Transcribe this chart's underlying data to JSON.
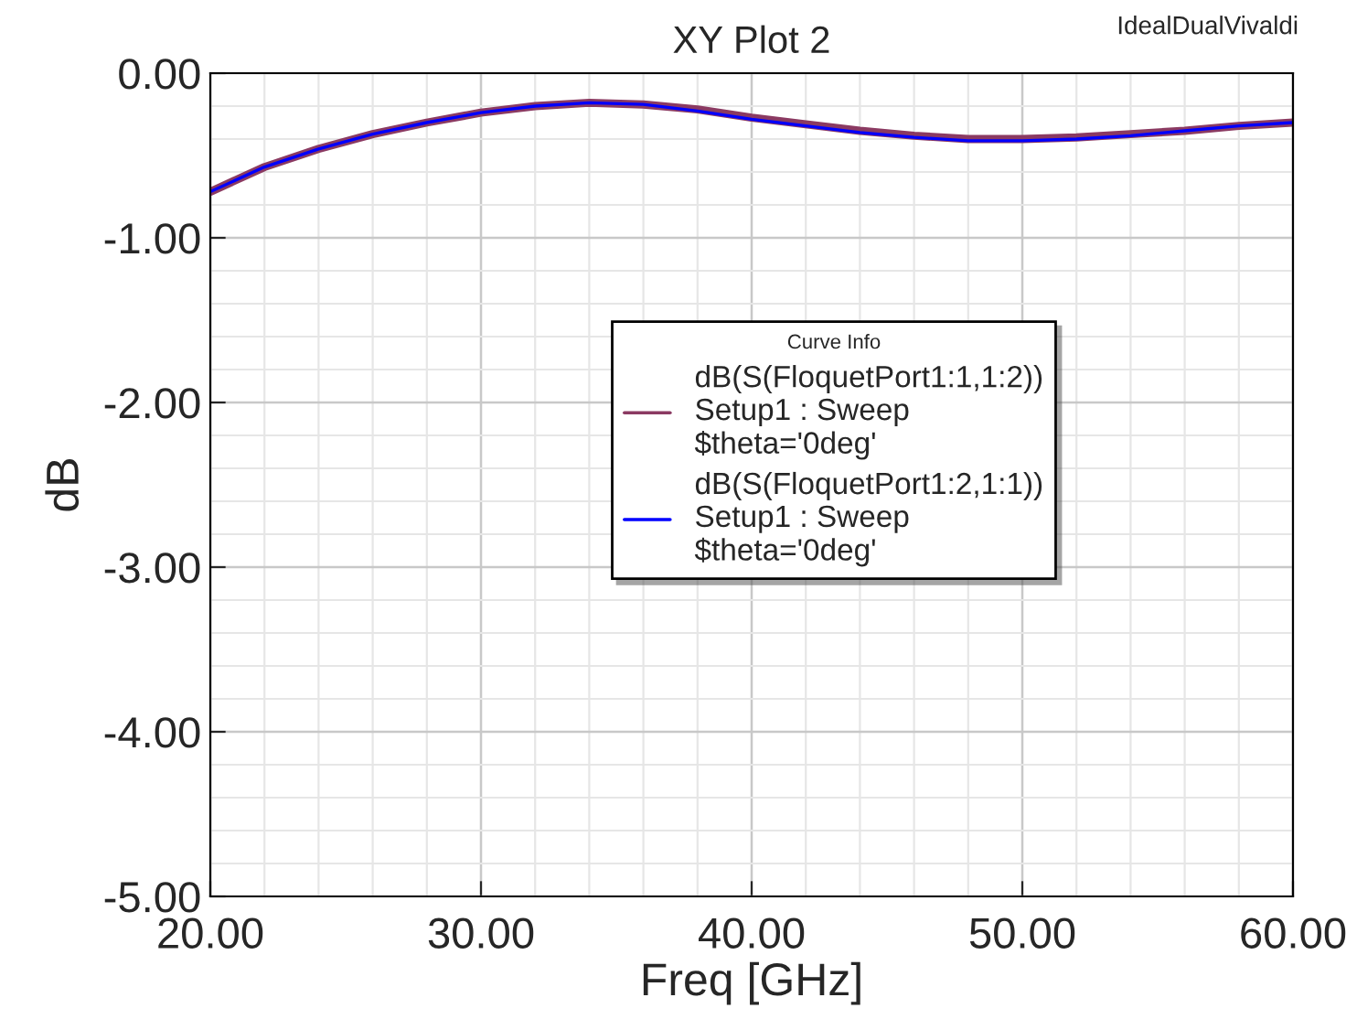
{
  "chart_data": {
    "type": "line",
    "title": "XY Plot 2",
    "xlabel": "Freq [GHz]",
    "ylabel": "dB",
    "annotations": [
      "IdealDualVivaldi"
    ],
    "legend_title": "Curve Info",
    "x": [
      20,
      22,
      24,
      26,
      28,
      30,
      32,
      34,
      36,
      38,
      40,
      42,
      44,
      46,
      48,
      50,
      52,
      54,
      56,
      58,
      60
    ],
    "series": [
      {
        "name": "dB(S(FloquetPort1:1,1:2))\nSetup1 : Sweep\n$theta='0deg'",
        "color": "#8b3a62",
        "values": [
          -0.72,
          -0.57,
          -0.46,
          -0.37,
          -0.3,
          -0.24,
          -0.2,
          -0.18,
          -0.19,
          -0.22,
          -0.27,
          -0.31,
          -0.35,
          -0.38,
          -0.4,
          -0.4,
          -0.39,
          -0.37,
          -0.35,
          -0.32,
          -0.3
        ]
      },
      {
        "name": "dB(S(FloquetPort1:2,1:1))\nSetup1 : Sweep\n$theta='0deg'",
        "color": "#0000ff",
        "values": [
          -0.72,
          -0.57,
          -0.46,
          -0.37,
          -0.3,
          -0.24,
          -0.2,
          -0.18,
          -0.19,
          -0.23,
          -0.28,
          -0.32,
          -0.36,
          -0.39,
          -0.41,
          -0.41,
          -0.4,
          -0.38,
          -0.35,
          -0.32,
          -0.3
        ]
      }
    ],
    "xlim": [
      20,
      60
    ],
    "ylim": [
      -5,
      0
    ],
    "xticks": [
      {
        "value": 20,
        "label": "20.00"
      },
      {
        "value": 30,
        "label": "30.00"
      },
      {
        "value": 40,
        "label": "40.00"
      },
      {
        "value": 50,
        "label": "50.00"
      },
      {
        "value": 60,
        "label": "60.00"
      }
    ],
    "yticks": [
      {
        "value": -5,
        "label": "-5.00"
      },
      {
        "value": -4,
        "label": "-4.00"
      },
      {
        "value": -3,
        "label": "-3.00"
      },
      {
        "value": -2,
        "label": "-2.00"
      },
      {
        "value": -1,
        "label": "-1.00"
      },
      {
        "value": 0,
        "label": "0.00"
      }
    ],
    "grid": true,
    "legend": "center",
    "marker": "none",
    "line_style": "solid"
  }
}
